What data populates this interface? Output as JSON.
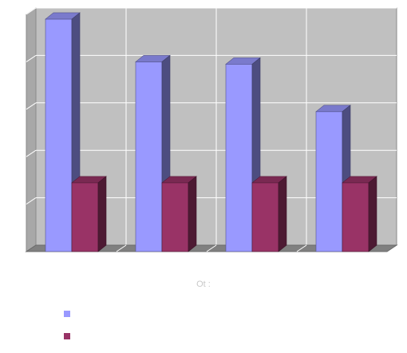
{
  "chart_data": {
    "type": "bar",
    "title": "",
    "xlabel": "Ot :",
    "ylabel": "",
    "ylim": [
      0,
      5
    ],
    "grid": true,
    "categories": [
      "",
      "",
      "",
      ""
    ],
    "series": [
      {
        "name": "",
        "color": "#9999ff",
        "values": [
          4.9,
          4.0,
          3.95,
          2.95
        ]
      },
      {
        "name": "",
        "color": "#993366",
        "values": [
          1.45,
          1.45,
          1.45,
          1.45
        ]
      }
    ],
    "legend_placement": "bottom-left"
  }
}
